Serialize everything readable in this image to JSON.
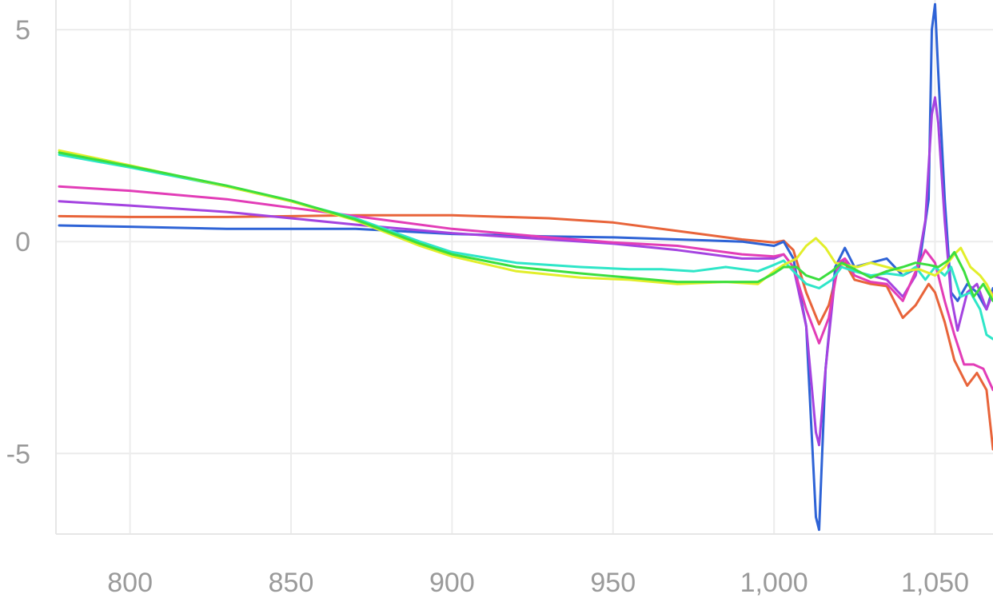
{
  "chart_data": {
    "type": "line",
    "title": "",
    "xlabel": "",
    "ylabel": "",
    "xlim": [
      777,
      1068
    ],
    "ylim": [
      -6.9,
      5.7
    ],
    "grid": true,
    "legend": "none",
    "x_ticks": [
      {
        "value": 800,
        "label": "800"
      },
      {
        "value": 850,
        "label": "850"
      },
      {
        "value": 900,
        "label": "900"
      },
      {
        "value": 950,
        "label": "950"
      },
      {
        "value": 1000,
        "label": "1,000"
      },
      {
        "value": 1050,
        "label": "1,050"
      }
    ],
    "y_ticks": [
      {
        "value": 5,
        "label": "5"
      },
      {
        "value": 0,
        "label": "0"
      },
      {
        "value": -5,
        "label": "-5"
      }
    ],
    "series": [
      {
        "color": "#e8643a",
        "points": [
          [
            778,
            0.6
          ],
          [
            800,
            0.58
          ],
          [
            830,
            0.58
          ],
          [
            850,
            0.6
          ],
          [
            870,
            0.62
          ],
          [
            900,
            0.62
          ],
          [
            930,
            0.55
          ],
          [
            950,
            0.45
          ],
          [
            970,
            0.25
          ],
          [
            990,
            0.05
          ],
          [
            1000,
            -0.02
          ],
          [
            1003,
            0.02
          ],
          [
            1006,
            -0.2
          ],
          [
            1010,
            -1.2
          ],
          [
            1014,
            -1.95
          ],
          [
            1017,
            -1.5
          ],
          [
            1020,
            -0.6
          ],
          [
            1022,
            -0.5
          ],
          [
            1025,
            -0.9
          ],
          [
            1030,
            -1.0
          ],
          [
            1035,
            -1.05
          ],
          [
            1040,
            -1.8
          ],
          [
            1044,
            -1.5
          ],
          [
            1048,
            -1.0
          ],
          [
            1050,
            -1.2
          ],
          [
            1053,
            -1.9
          ],
          [
            1056,
            -2.8
          ],
          [
            1060,
            -3.4
          ],
          [
            1063,
            -3.1
          ],
          [
            1066,
            -3.5
          ],
          [
            1068,
            -4.9
          ]
        ]
      },
      {
        "color": "#2e63d6",
        "points": [
          [
            778,
            0.38
          ],
          [
            800,
            0.35
          ],
          [
            830,
            0.3
          ],
          [
            850,
            0.3
          ],
          [
            870,
            0.3
          ],
          [
            900,
            0.18
          ],
          [
            930,
            0.12
          ],
          [
            950,
            0.1
          ],
          [
            970,
            0.05
          ],
          [
            990,
            0.0
          ],
          [
            1000,
            -0.1
          ],
          [
            1003,
            0.0
          ],
          [
            1006,
            -0.4
          ],
          [
            1010,
            -2.0
          ],
          [
            1013,
            -6.5
          ],
          [
            1014,
            -6.8
          ],
          [
            1016,
            -3.0
          ],
          [
            1019,
            -0.6
          ],
          [
            1022,
            -0.15
          ],
          [
            1025,
            -0.6
          ],
          [
            1030,
            -0.5
          ],
          [
            1035,
            -0.4
          ],
          [
            1040,
            -0.8
          ],
          [
            1045,
            -0.6
          ],
          [
            1048,
            1.0
          ],
          [
            1049,
            5.0
          ],
          [
            1050,
            5.6
          ],
          [
            1051,
            4.0
          ],
          [
            1053,
            1.0
          ],
          [
            1055,
            -1.2
          ],
          [
            1057,
            -1.4
          ],
          [
            1060,
            -1.0
          ],
          [
            1063,
            -1.2
          ],
          [
            1066,
            -1.6
          ],
          [
            1068,
            -1.1
          ]
        ]
      },
      {
        "color": "#a443e0",
        "points": [
          [
            778,
            0.95
          ],
          [
            800,
            0.85
          ],
          [
            830,
            0.7
          ],
          [
            850,
            0.55
          ],
          [
            870,
            0.4
          ],
          [
            900,
            0.2
          ],
          [
            930,
            0.05
          ],
          [
            950,
            -0.05
          ],
          [
            970,
            -0.2
          ],
          [
            990,
            -0.4
          ],
          [
            1000,
            -0.4
          ],
          [
            1003,
            -0.3
          ],
          [
            1006,
            -0.6
          ],
          [
            1010,
            -2.0
          ],
          [
            1013,
            -4.5
          ],
          [
            1014,
            -4.8
          ],
          [
            1016,
            -3.0
          ],
          [
            1019,
            -0.8
          ],
          [
            1022,
            -0.4
          ],
          [
            1025,
            -0.7
          ],
          [
            1030,
            -0.8
          ],
          [
            1035,
            -0.9
          ],
          [
            1040,
            -1.3
          ],
          [
            1044,
            -0.8
          ],
          [
            1047,
            0.5
          ],
          [
            1049,
            3.0
          ],
          [
            1050,
            3.4
          ],
          [
            1051,
            2.8
          ],
          [
            1053,
            0.5
          ],
          [
            1055,
            -1.3
          ],
          [
            1057,
            -2.1
          ],
          [
            1060,
            -1.2
          ],
          [
            1063,
            -1.0
          ],
          [
            1066,
            -1.6
          ],
          [
            1068,
            -1.2
          ]
        ]
      },
      {
        "color": "#e23db7",
        "points": [
          [
            778,
            1.3
          ],
          [
            800,
            1.2
          ],
          [
            830,
            1.0
          ],
          [
            850,
            0.8
          ],
          [
            870,
            0.6
          ],
          [
            900,
            0.3
          ],
          [
            930,
            0.1
          ],
          [
            950,
            -0.02
          ],
          [
            970,
            -0.1
          ],
          [
            990,
            -0.3
          ],
          [
            1000,
            -0.35
          ],
          [
            1003,
            -0.3
          ],
          [
            1006,
            -0.6
          ],
          [
            1010,
            -1.6
          ],
          [
            1014,
            -2.4
          ],
          [
            1017,
            -1.8
          ],
          [
            1020,
            -0.5
          ],
          [
            1022,
            -0.4
          ],
          [
            1025,
            -0.8
          ],
          [
            1030,
            -0.95
          ],
          [
            1035,
            -1.0
          ],
          [
            1040,
            -1.4
          ],
          [
            1044,
            -0.7
          ],
          [
            1047,
            -0.2
          ],
          [
            1050,
            -0.5
          ],
          [
            1053,
            -1.4
          ],
          [
            1056,
            -2.2
          ],
          [
            1059,
            -2.9
          ],
          [
            1062,
            -2.9
          ],
          [
            1065,
            -3.0
          ],
          [
            1068,
            -3.5
          ]
        ]
      },
      {
        "color": "#2ee6c8",
        "points": [
          [
            778,
            2.05
          ],
          [
            800,
            1.75
          ],
          [
            830,
            1.3
          ],
          [
            850,
            0.95
          ],
          [
            870,
            0.55
          ],
          [
            890,
            0.0
          ],
          [
            900,
            -0.25
          ],
          [
            920,
            -0.5
          ],
          [
            940,
            -0.6
          ],
          [
            955,
            -0.65
          ],
          [
            965,
            -0.65
          ],
          [
            975,
            -0.7
          ],
          [
            985,
            -0.6
          ],
          [
            995,
            -0.7
          ],
          [
            1000,
            -0.55
          ],
          [
            1003,
            -0.45
          ],
          [
            1006,
            -0.7
          ],
          [
            1010,
            -1.0
          ],
          [
            1014,
            -1.1
          ],
          [
            1018,
            -0.9
          ],
          [
            1021,
            -0.6
          ],
          [
            1025,
            -0.7
          ],
          [
            1030,
            -0.8
          ],
          [
            1035,
            -0.75
          ],
          [
            1040,
            -0.8
          ],
          [
            1044,
            -0.6
          ],
          [
            1047,
            -0.9
          ],
          [
            1050,
            -0.6
          ],
          [
            1053,
            -0.8
          ],
          [
            1055,
            -0.6
          ],
          [
            1058,
            -1.3
          ],
          [
            1061,
            -1.2
          ],
          [
            1064,
            -1.6
          ],
          [
            1066,
            -2.2
          ],
          [
            1068,
            -2.3
          ]
        ]
      },
      {
        "color": "#e2ee2a",
        "points": [
          [
            778,
            2.15
          ],
          [
            800,
            1.8
          ],
          [
            830,
            1.3
          ],
          [
            850,
            0.95
          ],
          [
            870,
            0.5
          ],
          [
            890,
            -0.1
          ],
          [
            900,
            -0.35
          ],
          [
            920,
            -0.7
          ],
          [
            940,
            -0.85
          ],
          [
            955,
            -0.9
          ],
          [
            970,
            -1.0
          ],
          [
            985,
            -0.95
          ],
          [
            995,
            -1.0
          ],
          [
            1000,
            -0.7
          ],
          [
            1003,
            -0.55
          ],
          [
            1007,
            -0.4
          ],
          [
            1010,
            -0.1
          ],
          [
            1013,
            0.08
          ],
          [
            1016,
            -0.15
          ],
          [
            1019,
            -0.5
          ],
          [
            1022,
            -0.55
          ],
          [
            1026,
            -0.6
          ],
          [
            1030,
            -0.5
          ],
          [
            1035,
            -0.6
          ],
          [
            1040,
            -0.7
          ],
          [
            1045,
            -0.65
          ],
          [
            1050,
            -0.8
          ],
          [
            1053,
            -0.6
          ],
          [
            1056,
            -0.3
          ],
          [
            1058,
            -0.15
          ],
          [
            1061,
            -0.6
          ],
          [
            1064,
            -0.8
          ],
          [
            1066,
            -1.0
          ],
          [
            1068,
            -1.3
          ]
        ]
      },
      {
        "color": "#3bde3f",
        "points": [
          [
            778,
            2.1
          ],
          [
            800,
            1.78
          ],
          [
            830,
            1.32
          ],
          [
            850,
            0.97
          ],
          [
            870,
            0.52
          ],
          [
            890,
            -0.05
          ],
          [
            900,
            -0.3
          ],
          [
            920,
            -0.6
          ],
          [
            940,
            -0.75
          ],
          [
            955,
            -0.85
          ],
          [
            970,
            -0.95
          ],
          [
            985,
            -0.95
          ],
          [
            995,
            -0.95
          ],
          [
            1000,
            -0.75
          ],
          [
            1003,
            -0.6
          ],
          [
            1007,
            -0.6
          ],
          [
            1010,
            -0.8
          ],
          [
            1014,
            -0.9
          ],
          [
            1018,
            -0.7
          ],
          [
            1021,
            -0.5
          ],
          [
            1025,
            -0.65
          ],
          [
            1030,
            -0.85
          ],
          [
            1035,
            -0.7
          ],
          [
            1040,
            -0.6
          ],
          [
            1044,
            -0.5
          ],
          [
            1048,
            -0.55
          ],
          [
            1051,
            -0.6
          ],
          [
            1054,
            -0.45
          ],
          [
            1056,
            -0.25
          ],
          [
            1059,
            -0.7
          ],
          [
            1062,
            -1.3
          ],
          [
            1065,
            -1.0
          ],
          [
            1068,
            -1.4
          ]
        ]
      }
    ]
  }
}
